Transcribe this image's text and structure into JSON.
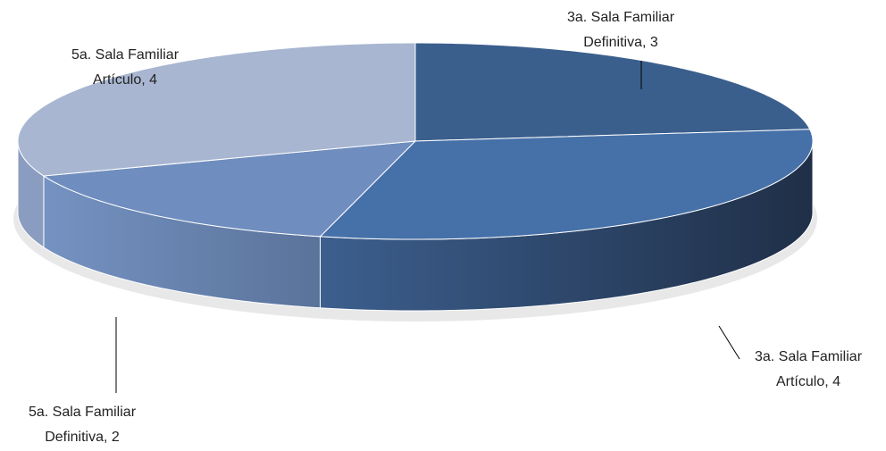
{
  "chart_data": {
    "type": "pie3d",
    "labels": [
      [
        "3a. Sala Familiar",
        "Definitiva, 3"
      ],
      [
        "3a. Sala Familiar",
        "Artículo, 4"
      ],
      [
        "5a. Sala Familiar",
        "Definitiva, 2"
      ],
      [
        "5a. Sala Familiar",
        "Artículo, 4"
      ]
    ],
    "values": [
      3,
      4,
      2,
      4
    ],
    "colors": [
      "#3b5f8d",
      "#4670a8",
      "#6f8dbf",
      "#a8b6d1"
    ],
    "side_colors": [
      [
        "#2e4b70",
        "#3a5d8a"
      ],
      [
        "#3c5f8e",
        "#1f2f47"
      ],
      [
        "#7592c2",
        "#5a739a"
      ],
      [
        "#8a9cbf",
        "#8a9cbf"
      ]
    ]
  }
}
